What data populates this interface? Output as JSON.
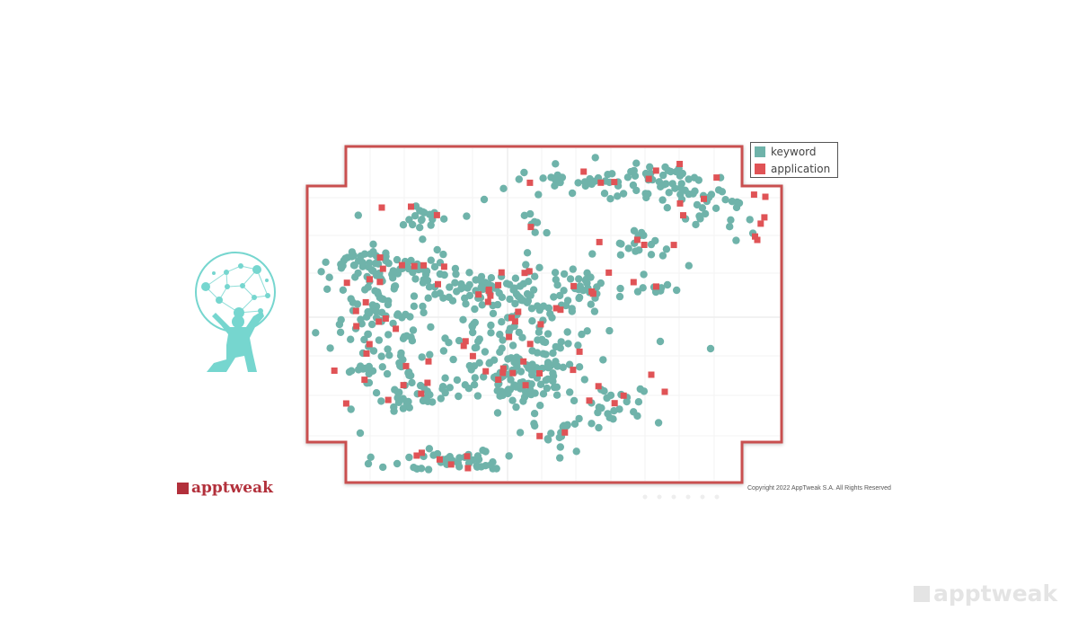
{
  "chart_data": {
    "type": "scatter",
    "legend": {
      "placement": "top-right",
      "entries": [
        "keyword",
        "application"
      ]
    },
    "grid": true,
    "colors": {
      "keyword": "#6fb3aa",
      "application": "#e05356",
      "frame": "#c9504f"
    },
    "series": [
      {
        "name": "keyword",
        "marker": "circle",
        "points": []
      },
      {
        "name": "application",
        "marker": "square",
        "points": []
      }
    ]
  },
  "branding": {
    "logo_text": "apptweak",
    "copyright": "Copyright 2022 AppTweak S.A. All Rights Reserved",
    "watermark_text": "apptweak"
  },
  "illustration": {
    "icon": "atlas-globe-icon",
    "color": "#76d6cf"
  }
}
